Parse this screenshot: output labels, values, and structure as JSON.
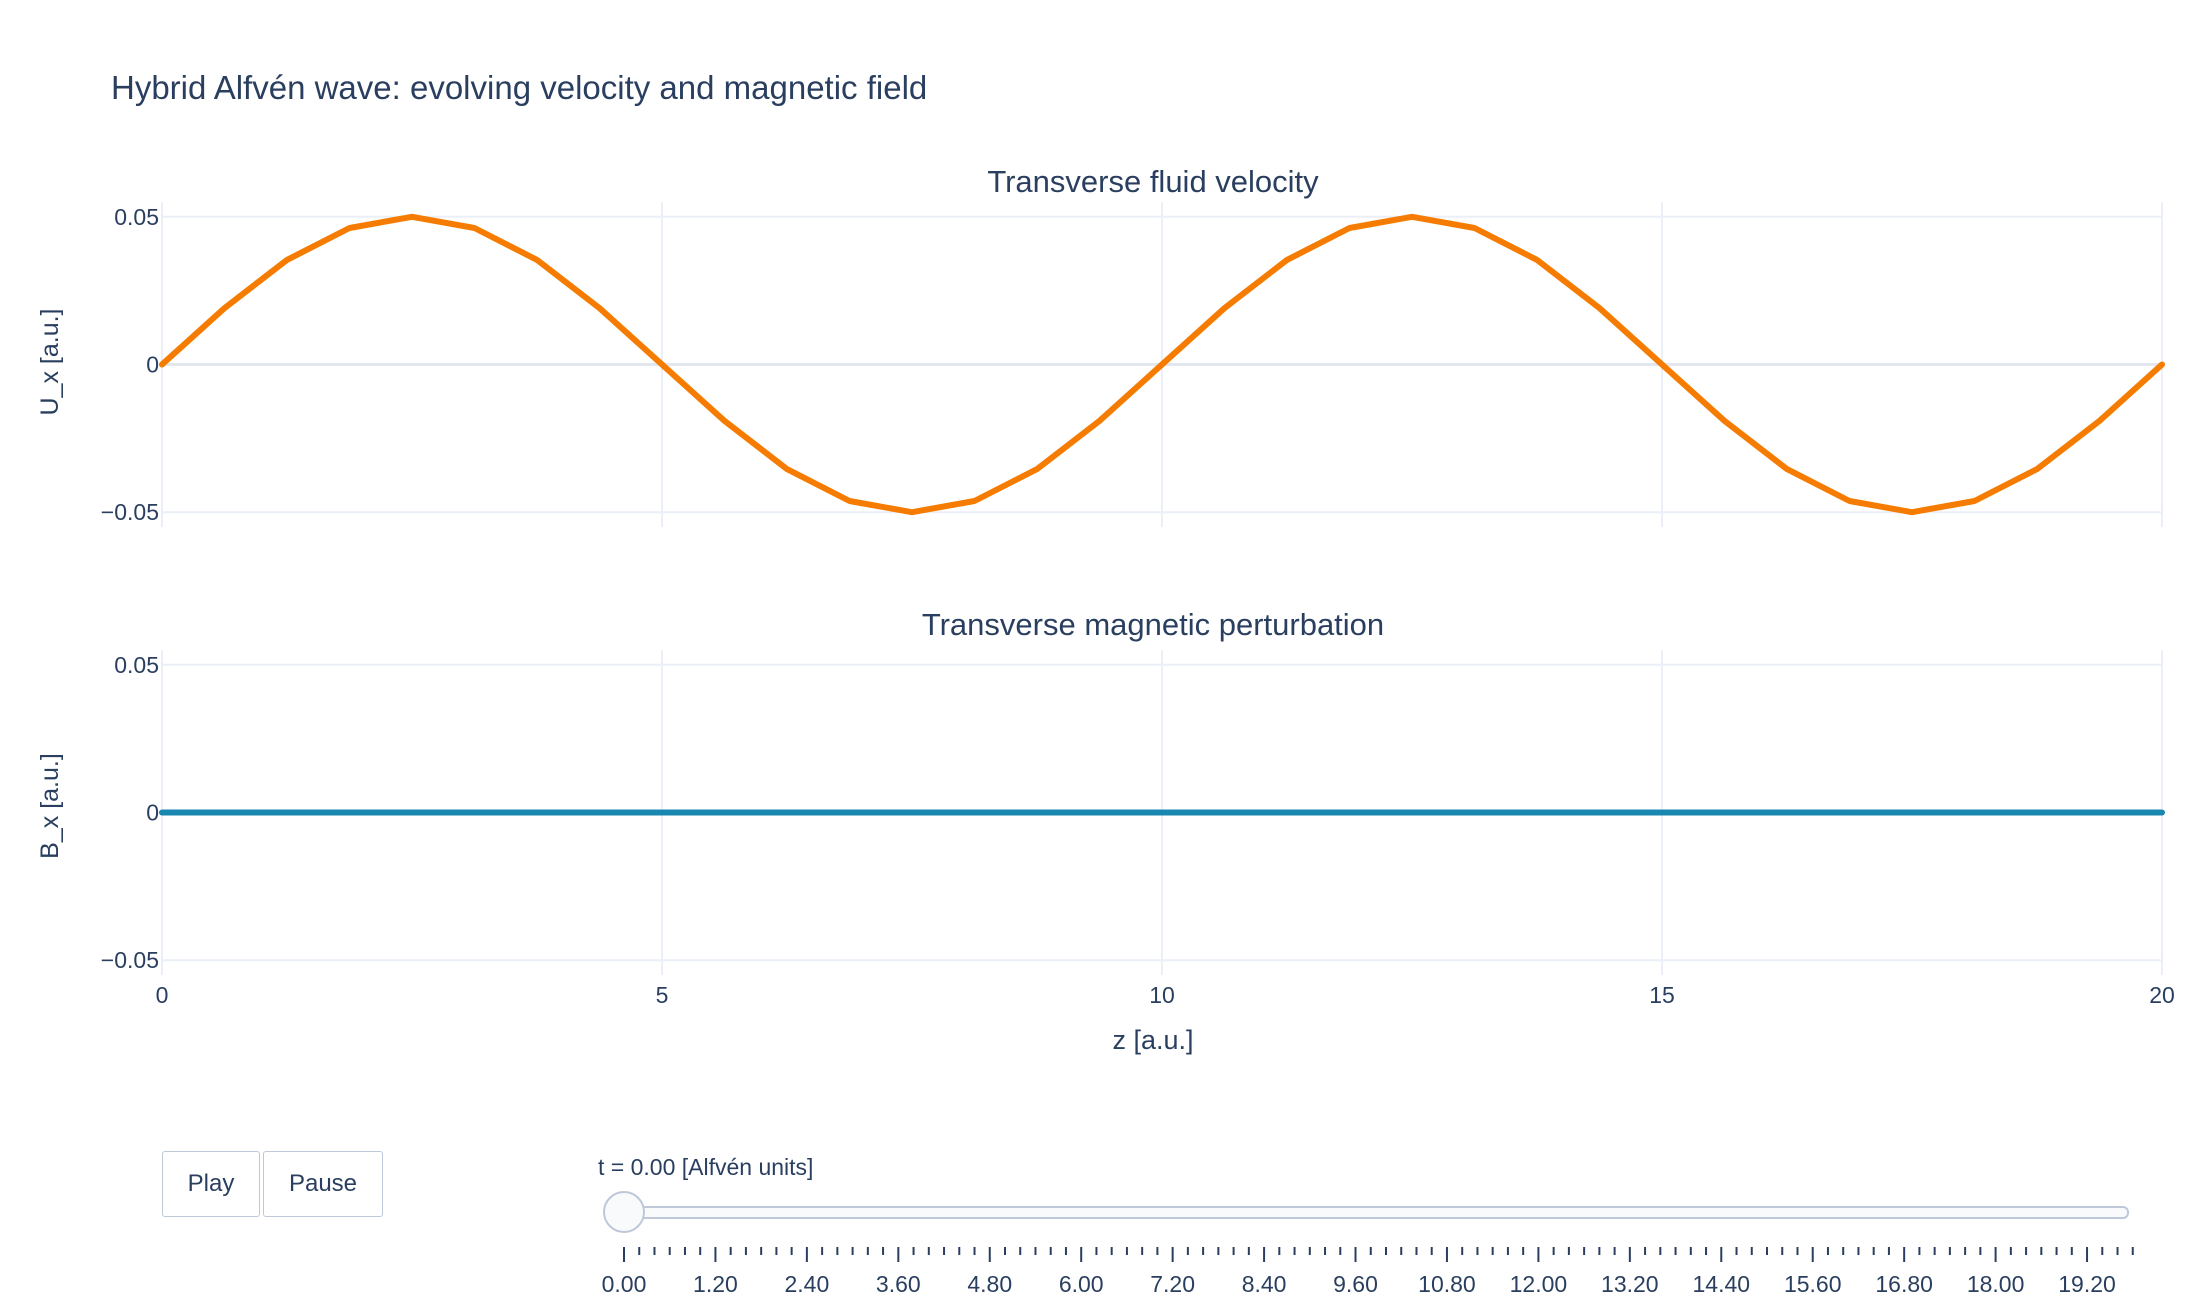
{
  "title": "Hybrid Alfvén wave: evolving velocity and magnetic field",
  "xlabel": "z [a.u.]",
  "controls": {
    "play_label": "Play",
    "pause_label": "Pause",
    "slider_current_label": "t = 0.00 [Alfvén units]",
    "slider_value": 0,
    "slider_min": 0,
    "slider_max": 20,
    "slider_step": 0.2,
    "slider_tick_labels": [
      "0.00",
      "1.20",
      "2.40",
      "3.60",
      "4.80",
      "6.00",
      "7.20",
      "8.40",
      "9.60",
      "10.80",
      "12.00",
      "13.20",
      "14.40",
      "15.60",
      "16.80",
      "18.00",
      "19.20"
    ]
  },
  "colors": {
    "velocity": "#f57c00",
    "magnetic": "#1a87b0",
    "grid": "#ebf0f8",
    "text": "#2a3f5f"
  },
  "chart_data": [
    {
      "type": "line",
      "title": "Transverse fluid velocity",
      "xlabel": "z [a.u.]",
      "ylabel": "U_x [a.u.]",
      "xlim": [
        0,
        20
      ],
      "ylim": [
        -0.055,
        0.055
      ],
      "x_ticks": [
        "0",
        "5",
        "10",
        "15",
        "20"
      ],
      "y_ticks": [
        "0.05",
        "0",
        "−0.05"
      ],
      "series": [
        {
          "x": [
            0,
            0.625,
            1.25,
            1.875,
            2.5,
            3.125,
            3.75,
            4.375,
            5,
            5.625,
            6.25,
            6.875,
            7.5,
            8.125,
            8.75,
            9.375,
            10,
            10.625,
            11.25,
            11.875,
            12.5,
            13.125,
            13.75,
            14.375,
            15,
            15.625,
            16.25,
            16.875,
            17.5,
            18.125,
            18.75,
            19.375,
            20
          ],
          "y": [
            0,
            0.0191,
            0.0354,
            0.0462,
            0.05,
            0.0462,
            0.0354,
            0.0191,
            0,
            -0.0191,
            -0.0354,
            -0.0462,
            -0.05,
            -0.0462,
            -0.0354,
            -0.0191,
            0,
            0.0191,
            0.0354,
            0.0462,
            0.05,
            0.0462,
            0.0354,
            0.0191,
            0,
            -0.0191,
            -0.0354,
            -0.0462,
            -0.05,
            -0.0462,
            -0.0354,
            -0.0191,
            0
          ]
        }
      ]
    },
    {
      "type": "line",
      "title": "Transverse magnetic perturbation",
      "xlabel": "z [a.u.]",
      "ylabel": "B_x [a.u.]",
      "xlim": [
        0,
        20
      ],
      "ylim": [
        -0.055,
        0.055
      ],
      "x_ticks": [
        "0",
        "5",
        "10",
        "15",
        "20"
      ],
      "y_ticks": [
        "0.05",
        "0",
        "−0.05"
      ],
      "series": [
        {
          "x": [
            0,
            20
          ],
          "y": [
            0,
            0
          ]
        }
      ]
    }
  ]
}
